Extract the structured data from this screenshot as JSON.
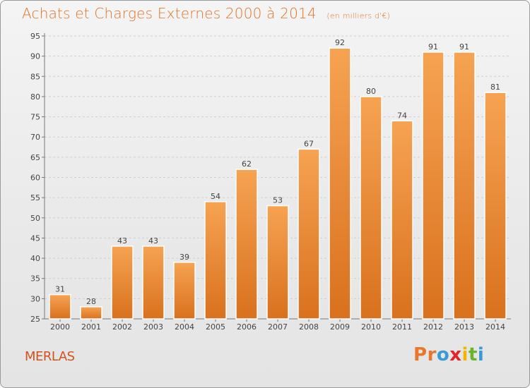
{
  "chart_data": {
    "type": "bar",
    "title": "Achats et Charges Externes 2000 à 2014",
    "subtitle": "(en milliers d'€)",
    "categories": [
      "2000",
      "2001",
      "2002",
      "2003",
      "2004",
      "2005",
      "2006",
      "2007",
      "2008",
      "2009",
      "2010",
      "2011",
      "2012",
      "2013",
      "2014"
    ],
    "values": [
      31,
      28,
      43,
      43,
      39,
      54,
      62,
      53,
      67,
      92,
      80,
      74,
      91,
      91,
      81
    ],
    "ylim": [
      25,
      95
    ],
    "yticks": [
      25,
      30,
      35,
      40,
      45,
      50,
      55,
      60,
      65,
      70,
      75,
      80,
      85,
      90,
      95
    ],
    "grid": true,
    "bar_color": "#f0892e"
  },
  "footer": {
    "town": "MERLAS",
    "logo_letters": [
      "P",
      "r",
      "o",
      "x",
      "i",
      "t",
      "i"
    ],
    "logo_colors": [
      "#e8762b",
      "#e8762b",
      "#3a9ad6",
      "#e2242b",
      "#f2b600",
      "#6ab42d",
      "#3a9ad6"
    ]
  }
}
